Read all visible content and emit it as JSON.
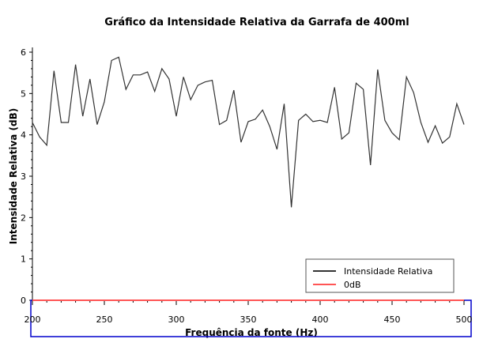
{
  "chart_data": {
    "type": "line",
    "title": "Gráfico da Intensidade Relativa da Garrafa de 400ml",
    "xlabel": "Frequência da fonte (Hz)",
    "ylabel": "Intensidade Relativa (dB)",
    "xlim": [
      200,
      500
    ],
    "ylim": [
      0,
      6
    ],
    "xticks": [
      200,
      250,
      300,
      350,
      400,
      450,
      500
    ],
    "yticks": [
      0,
      1,
      2,
      3,
      4,
      5,
      6
    ],
    "grid": false,
    "legend_position": "bottom-right",
    "series": [
      {
        "name": "Intensidade Relativa",
        "color": "#333333",
        "x": [
          200,
          205,
          210,
          215,
          220,
          225,
          230,
          235,
          240,
          245,
          250,
          255,
          260,
          265,
          270,
          275,
          280,
          285,
          290,
          295,
          300,
          305,
          310,
          315,
          320,
          325,
          330,
          335,
          340,
          345,
          350,
          355,
          360,
          365,
          370,
          375,
          380,
          385,
          390,
          395,
          400,
          405,
          410,
          415,
          420,
          425,
          430,
          435,
          440,
          445,
          450,
          455,
          460,
          465,
          470,
          475,
          480,
          485,
          490,
          495,
          500
        ],
        "y": [
          4.3,
          3.95,
          3.75,
          5.55,
          4.3,
          4.3,
          5.7,
          4.45,
          5.35,
          4.25,
          4.8,
          5.8,
          5.88,
          5.1,
          5.45,
          5.45,
          5.52,
          5.05,
          5.6,
          5.35,
          4.45,
          5.4,
          4.85,
          5.2,
          5.28,
          5.32,
          4.25,
          4.35,
          5.08,
          3.82,
          4.32,
          4.38,
          4.6,
          4.2,
          3.65,
          4.75,
          2.25,
          4.35,
          4.5,
          4.32,
          4.35,
          4.3,
          5.15,
          3.9,
          4.05,
          5.25,
          5.1,
          3.27,
          5.58,
          4.35,
          4.05,
          3.88,
          5.4,
          5.02,
          4.3,
          3.82,
          4.22,
          3.8,
          3.95,
          4.75,
          4.25
        ]
      },
      {
        "name": "0dB",
        "color": "#ff5555",
        "x": [
          200,
          500
        ],
        "y": [
          0,
          0
        ]
      }
    ]
  }
}
